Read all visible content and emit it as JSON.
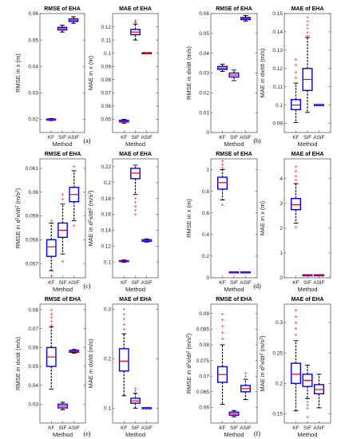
{
  "colors": {
    "box": "#0000ff",
    "median": "#ff0000",
    "whisker": "#000000",
    "outlier": "#ff0000",
    "axis": "#262626"
  },
  "chart_data": [
    {
      "type": "box",
      "title": "RMSE of EHA",
      "xlabel": "Method",
      "ylabel": "RMSE in x (m)",
      "xticklabels": [
        "KF",
        "SIF",
        "ASIF"
      ],
      "ylim": [
        0.015,
        0.06
      ],
      "yticks": [
        0.02,
        0.03,
        0.04,
        0.05,
        0.06
      ],
      "ytick_labels": [
        "0.02",
        "0.03",
        "0.04",
        "0.05",
        "0.06"
      ],
      "boxes": [
        {
          "category": "KF",
          "q1": 0.0197,
          "median": 0.0199,
          "q3": 0.0201,
          "whisker_low": 0.0195,
          "whisker_high": 0.0203,
          "outliers": []
        },
        {
          "category": "SIF",
          "q1": 0.0538,
          "median": 0.0543,
          "q3": 0.0548,
          "whisker_low": 0.053,
          "whisker_high": 0.0556,
          "outliers": []
        },
        {
          "category": "ASIF",
          "q1": 0.057,
          "median": 0.0575,
          "q3": 0.058,
          "whisker_low": 0.0563,
          "whisker_high": 0.0588,
          "outliers": []
        }
      ]
    },
    {
      "type": "box",
      "title": "MAE of EHA",
      "xlabel": "Method",
      "ylabel": "MAE in x (m)",
      "xticklabels": [
        "KF",
        "SIF",
        "ASIF"
      ],
      "ylim": [
        0.04,
        0.13
      ],
      "yticks": [
        0.05,
        0.06,
        0.07,
        0.08,
        0.09,
        0.1,
        0.11,
        0.12
      ],
      "ytick_labels": [
        "0.05",
        "0.06",
        "0.07",
        "0.08",
        "0.09",
        "0.1",
        "0.11",
        "0.12"
      ],
      "boxes": [
        {
          "category": "KF",
          "q1": 0.048,
          "median": 0.0485,
          "q3": 0.0492,
          "whisker_low": 0.047,
          "whisker_high": 0.05,
          "outliers": []
        },
        {
          "category": "SIF",
          "q1": 0.114,
          "median": 0.116,
          "q3": 0.118,
          "whisker_low": 0.11,
          "whisker_high": 0.122,
          "outliers": [
            0.123,
            0.124,
            0.125
          ]
        },
        {
          "category": "ASIF",
          "q1": 0.1,
          "median": 0.1,
          "q3": 0.1,
          "whisker_low": 0.1,
          "whisker_high": 0.1,
          "outliers": []
        }
      ]
    },
    {
      "type": "box",
      "title": "RMSE of EHA",
      "xlabel": "Method",
      "ylabel": "RMSE in dx/dt (m/s)",
      "xticklabels": [
        "KF",
        "SIF",
        "ASIF"
      ],
      "ylim": [
        0.0,
        0.06
      ],
      "yticks": [
        0.0,
        0.01,
        0.02,
        0.03,
        0.04,
        0.05,
        0.06
      ],
      "ytick_labels": [
        "0",
        "0.01",
        "0.02",
        "0.03",
        "0.04",
        "0.05",
        "0.06"
      ],
      "boxes": [
        {
          "category": "KF",
          "q1": 0.0318,
          "median": 0.0325,
          "q3": 0.0333,
          "whisker_low": 0.0308,
          "whisker_high": 0.0345,
          "outliers": []
        },
        {
          "category": "SIF",
          "q1": 0.028,
          "median": 0.029,
          "q3": 0.03,
          "whisker_low": 0.0262,
          "whisker_high": 0.0315,
          "outliers": []
        },
        {
          "category": "ASIF",
          "q1": 0.057,
          "median": 0.0575,
          "q3": 0.058,
          "whisker_low": 0.0562,
          "whisker_high": 0.059,
          "outliers": []
        }
      ]
    },
    {
      "type": "box",
      "title": "MAE of EHA",
      "xlabel": "Method",
      "ylabel": "MAE in dx/dt (m/s)",
      "xticklabels": [
        "KF",
        "SIF",
        "ASIF"
      ],
      "ylim": [
        0.085,
        0.15
      ],
      "yticks": [
        0.09,
        0.1,
        0.11,
        0.12,
        0.13,
        0.14,
        0.15
      ],
      "ytick_labels": [
        "0.09",
        "0.1",
        "0.11",
        "0.12",
        "0.13",
        "0.14",
        "0.15"
      ],
      "boxes": [
        {
          "category": "KF",
          "q1": 0.0975,
          "median": 0.1,
          "q3": 0.103,
          "whisker_low": 0.0905,
          "whisker_high": 0.112,
          "outliers": [
            0.115,
            0.118,
            0.122,
            0.125
          ]
        },
        {
          "category": "SIF",
          "q1": 0.108,
          "median": 0.114,
          "q3": 0.12,
          "whisker_low": 0.096,
          "whisker_high": 0.137,
          "outliers": [
            0.138,
            0.14,
            0.142,
            0.144,
            0.146,
            0.148
          ]
        },
        {
          "category": "ASIF",
          "q1": 0.1,
          "median": 0.1,
          "q3": 0.1,
          "whisker_low": 0.1,
          "whisker_high": 0.1,
          "outliers": []
        }
      ]
    },
    {
      "type": "box",
      "title": "RMSE of EHA",
      "xlabel": "Method",
      "ylabel": "RMSE in d²x/dt² (m/s²)",
      "xticklabels": [
        "KF",
        "SIF",
        "ASIF"
      ],
      "ylim": [
        0.0564,
        0.0614
      ],
      "yticks": [
        0.057,
        0.058,
        0.059,
        0.06,
        0.061
      ],
      "ytick_labels": [
        "0.057",
        "0.058",
        "0.059",
        "0.06",
        "0.061"
      ],
      "boxes": [
        {
          "category": "KF",
          "q1": 0.0573,
          "median": 0.0577,
          "q3": 0.058,
          "whisker_low": 0.0567,
          "whisker_high": 0.0587,
          "outliers": [
            0.0565,
            0.0588
          ]
        },
        {
          "category": "SIF",
          "q1": 0.0581,
          "median": 0.0584,
          "q3": 0.0587,
          "whisker_low": 0.0574,
          "whisker_high": 0.0595,
          "outliers": [
            0.0571,
            0.0597,
            0.0599
          ]
        },
        {
          "category": "ASIF",
          "q1": 0.0596,
          "median": 0.0599,
          "q3": 0.0602,
          "whisker_low": 0.0588,
          "whisker_high": 0.0609,
          "outliers": [
            0.0586,
            0.0611
          ]
        }
      ]
    },
    {
      "type": "box",
      "title": "MAE of EHA",
      "xlabel": "Method",
      "ylabel": "MAE in d²x/dt² (m/s²)",
      "xticklabels": [
        "KF",
        "SIF",
        "ASIF"
      ],
      "ylim": [
        0.08,
        0.23
      ],
      "yticks": [
        0.1,
        0.12,
        0.14,
        0.16,
        0.18,
        0.2,
        0.22
      ],
      "ytick_labels": [
        "0.1",
        "0.12",
        "0.14",
        "0.16",
        "0.18",
        "0.2",
        "0.22"
      ],
      "boxes": [
        {
          "category": "KF",
          "q1": 0.1005,
          "median": 0.101,
          "q3": 0.1015,
          "whisker_low": 0.0995,
          "whisker_high": 0.1025,
          "outliers": []
        },
        {
          "category": "SIF",
          "q1": 0.205,
          "median": 0.212,
          "q3": 0.218,
          "whisker_low": 0.185,
          "whisker_high": 0.222,
          "outliers": [
            0.16,
            0.165,
            0.17,
            0.175,
            0.18
          ]
        },
        {
          "category": "ASIF",
          "q1": 0.126,
          "median": 0.127,
          "q3": 0.128,
          "whisker_low": 0.125,
          "whisker_high": 0.129,
          "outliers": []
        }
      ]
    },
    {
      "type": "box",
      "title": "RMSE of EHA",
      "xlabel": "Method",
      "ylabel": "RMSE in x (m)",
      "xticklabels": [
        "KF",
        "SIF",
        "ASIF"
      ],
      "ylim": [
        0.0,
        1.1
      ],
      "yticks": [
        0.0,
        0.2,
        0.4,
        0.6,
        0.8,
        1.0
      ],
      "ytick_labels": [
        "0",
        "0.2",
        "0.4",
        "0.6",
        "0.8",
        "1"
      ],
      "boxes": [
        {
          "category": "KF",
          "q1": 0.82,
          "median": 0.88,
          "q3": 0.93,
          "whisker_low": 0.72,
          "whisker_high": 1.0,
          "outliers": [
            0.68,
            1.02,
            1.05,
            1.08
          ]
        },
        {
          "category": "SIF",
          "q1": 0.049,
          "median": 0.05,
          "q3": 0.051,
          "whisker_low": 0.048,
          "whisker_high": 0.052,
          "outliers": []
        },
        {
          "category": "ASIF",
          "q1": 0.049,
          "median": 0.05,
          "q3": 0.051,
          "whisker_low": 0.048,
          "whisker_high": 0.052,
          "outliers": []
        }
      ]
    },
    {
      "type": "box",
      "title": "MAE of EHA",
      "xlabel": "Method",
      "ylabel": "MAE in x (m)",
      "xticklabels": [
        "KF",
        "SIF",
        "ASIF"
      ],
      "ylim": [
        0.0,
        4.8
      ],
      "yticks": [
        0,
        1,
        2,
        3,
        4
      ],
      "ytick_labels": [
        "0",
        "1",
        "2",
        "3",
        "4"
      ],
      "boxes": [
        {
          "category": "KF",
          "q1": 2.75,
          "median": 2.95,
          "q3": 3.2,
          "whisker_low": 2.2,
          "whisker_high": 3.8,
          "outliers": [
            2.05,
            3.95,
            4.1,
            4.3,
            4.5
          ]
        },
        {
          "category": "SIF",
          "q1": 0.095,
          "median": 0.1,
          "q3": 0.105,
          "whisker_low": 0.09,
          "whisker_high": 0.11,
          "outliers": []
        },
        {
          "category": "ASIF",
          "q1": 0.095,
          "median": 0.1,
          "q3": 0.105,
          "whisker_low": 0.09,
          "whisker_high": 0.11,
          "outliers": []
        }
      ]
    },
    {
      "type": "box",
      "title": "RMSE of EHA",
      "xlabel": "Method",
      "ylabel": "RMSE in dx/dt (m/s)",
      "xticklabels": [
        "KF",
        "SIF",
        "ASIF"
      ],
      "ylim": [
        0.02,
        0.083
      ],
      "yticks": [
        0.03,
        0.04,
        0.05,
        0.06,
        0.07,
        0.08
      ],
      "ytick_labels": [
        "0.03",
        "0.04",
        "0.05",
        "0.06",
        "0.07",
        "0.08"
      ],
      "boxes": [
        {
          "category": "KF",
          "q1": 0.05,
          "median": 0.055,
          "q3": 0.06,
          "whisker_low": 0.038,
          "whisker_high": 0.071,
          "outliers": [
            0.072,
            0.074,
            0.076,
            0.078,
            0.08
          ]
        },
        {
          "category": "SIF",
          "q1": 0.028,
          "median": 0.029,
          "q3": 0.03,
          "whisker_low": 0.027,
          "whisker_high": 0.031,
          "outliers": []
        },
        {
          "category": "ASIF",
          "q1": 0.0575,
          "median": 0.058,
          "q3": 0.0585,
          "whisker_low": 0.057,
          "whisker_high": 0.059,
          "outliers": []
        }
      ]
    },
    {
      "type": "box",
      "title": "MAE of EHA",
      "xlabel": "Method",
      "ylabel": "MAE in dx/dt (m/s)",
      "xticklabels": [
        "KF",
        "SIF",
        "ASIF"
      ],
      "ylim": [
        0.07,
        0.31
      ],
      "yticks": [
        0.1,
        0.2,
        0.3
      ],
      "ytick_labels": [
        "0.1",
        "0.2",
        "0.3"
      ],
      "boxes": [
        {
          "category": "KF",
          "q1": 0.175,
          "median": 0.195,
          "q3": 0.22,
          "whisker_low": 0.125,
          "whisker_high": 0.25,
          "outliers": [
            0.26,
            0.27,
            0.28,
            0.29,
            0.3
          ]
        },
        {
          "category": "SIF",
          "q1": 0.11,
          "median": 0.115,
          "q3": 0.12,
          "whisker_low": 0.1,
          "whisker_high": 0.13,
          "outliers": [
            0.135,
            0.14
          ]
        },
        {
          "category": "ASIF",
          "q1": 0.1,
          "median": 0.1,
          "q3": 0.1,
          "whisker_low": 0.1,
          "whisker_high": 0.1,
          "outliers": []
        }
      ]
    },
    {
      "type": "box",
      "title": "RMSE of EHA",
      "xlabel": "Method",
      "ylabel": "RMSE in d²x/dt² (m/s²)",
      "xticklabels": [
        "KF",
        "SIF",
        "ASIF"
      ],
      "ylim": [
        0.055,
        0.093
      ],
      "yticks": [
        0.06,
        0.065,
        0.07,
        0.075,
        0.08,
        0.085,
        0.09
      ],
      "ytick_labels": [
        "0.06",
        "0.065",
        "0.07",
        "0.075",
        "0.08",
        "0.085",
        "0.09"
      ],
      "boxes": [
        {
          "category": "KF",
          "q1": 0.068,
          "median": 0.0705,
          "q3": 0.073,
          "whisker_low": 0.061,
          "whisker_high": 0.08,
          "outliers": [
            0.082,
            0.084,
            0.086,
            0.088,
            0.09
          ]
        },
        {
          "category": "SIF",
          "q1": 0.0575,
          "median": 0.058,
          "q3": 0.0585,
          "whisker_low": 0.057,
          "whisker_high": 0.059,
          "outliers": []
        },
        {
          "category": "ASIF",
          "q1": 0.065,
          "median": 0.066,
          "q3": 0.067,
          "whisker_low": 0.0625,
          "whisker_high": 0.069,
          "outliers": [
            0.07,
            0.071
          ]
        }
      ]
    },
    {
      "type": "box",
      "title": "MAE of EHA",
      "xlabel": "Method",
      "ylabel": "MAE in d²x/dt² (m/s²)",
      "xticklabels": [
        "KF",
        "SIF",
        "ASIF"
      ],
      "ylim": [
        0.135,
        0.33
      ],
      "yticks": [
        0.15,
        0.2,
        0.25,
        0.3
      ],
      "ytick_labels": [
        "0.15",
        "0.2",
        "0.25",
        "0.3"
      ],
      "boxes": [
        {
          "category": "KF",
          "q1": 0.2,
          "median": 0.215,
          "q3": 0.233,
          "whisker_low": 0.155,
          "whisker_high": 0.27,
          "outliers": [
            0.28,
            0.29,
            0.3,
            0.31,
            0.32
          ]
        },
        {
          "category": "SIF",
          "q1": 0.195,
          "median": 0.205,
          "q3": 0.215,
          "whisker_low": 0.175,
          "whisker_high": 0.23,
          "outliers": [
            0.16,
            0.165,
            0.17,
            0.145
          ]
        },
        {
          "category": "ASIF",
          "q1": 0.183,
          "median": 0.19,
          "q3": 0.198,
          "whisker_low": 0.16,
          "whisker_high": 0.215,
          "outliers": []
        }
      ]
    }
  ],
  "captions": [
    "(a)",
    "(b)",
    "(c)",
    "(d)",
    "(e)",
    "(f)"
  ]
}
